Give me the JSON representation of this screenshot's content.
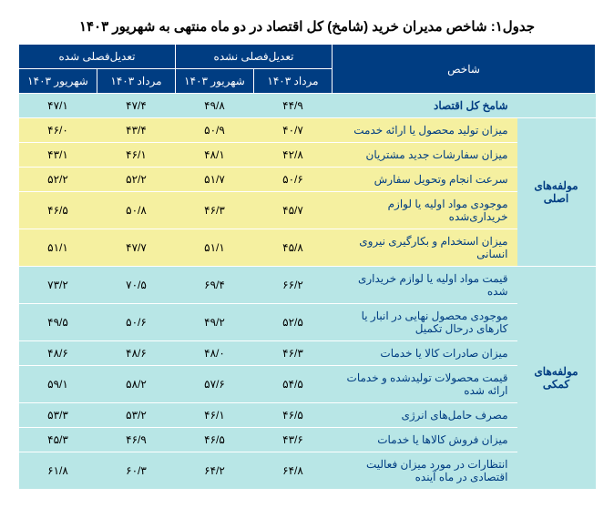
{
  "title": "جدول۱: شاخص مدیران خرید (شامخ) کل اقتصاد در دو ماه منتهی به شهریور ۱۴۰۳",
  "header": {
    "index_label": "شاخص",
    "group_nsa": "تعدیل‌فصلی نشده",
    "group_sa": "تعدیل‌فصلی شده",
    "col_nsa_m": "مرداد ۱۴۰۳",
    "col_nsa_sh": "شهریور ۱۴۰۳",
    "col_sa_m": "مرداد ۱۴۰۳",
    "col_sa_sh": "شهریور ۱۴۰۳"
  },
  "colors": {
    "header_bg": "#003d82",
    "header_fg": "#ffffff",
    "cyan": "#b8e6e6",
    "yellow": "#f5f0a0",
    "label_fg": "#003d82"
  },
  "groups": {
    "total": "",
    "main": "مولفه‌های اصلی",
    "aux": "مولفه‌های کمکی"
  },
  "rows": {
    "r0": {
      "label": "شامخ کل اقتصاد",
      "nsa_m": "۴۴/۹",
      "nsa_sh": "۴۹/۸",
      "sa_m": "۴۷/۴",
      "sa_sh": "۴۷/۱"
    },
    "r1": {
      "label": "میزان تولید محصول یا ارائه خدمت",
      "nsa_m": "۴۰/۷",
      "nsa_sh": "۵۰/۹",
      "sa_m": "۴۳/۴",
      "sa_sh": "۴۶/۰"
    },
    "r2": {
      "label": "میزان سفارشات جدید مشتریان",
      "nsa_m": "۴۲/۸",
      "nsa_sh": "۴۸/۱",
      "sa_m": "۴۶/۱",
      "sa_sh": "۴۳/۱"
    },
    "r3": {
      "label": "سرعت انجام وتحویل سفارش",
      "nsa_m": "۵۰/۶",
      "nsa_sh": "۵۱/۷",
      "sa_m": "۵۲/۲",
      "sa_sh": "۵۲/۲"
    },
    "r4": {
      "label": "موجودی مواد اولیه یا لوازم خریداری‌شده",
      "nsa_m": "۴۵/۷",
      "nsa_sh": "۴۶/۳",
      "sa_m": "۵۰/۸",
      "sa_sh": "۴۶/۵"
    },
    "r5": {
      "label": "میزان استخدام و بکارگیری نیروی انسانی",
      "nsa_m": "۴۵/۸",
      "nsa_sh": "۵۱/۱",
      "sa_m": "۴۷/۷",
      "sa_sh": "۵۱/۱"
    },
    "r6": {
      "label": "قیمت مواد اولیه یا لوازم خریداری شده",
      "nsa_m": "۶۶/۲",
      "nsa_sh": "۶۹/۴",
      "sa_m": "۷۰/۵",
      "sa_sh": "۷۳/۲"
    },
    "r7": {
      "label": "موجودی محصول نهایی در انبار یا کارهای درحال تکمیل",
      "nsa_m": "۵۲/۵",
      "nsa_sh": "۴۹/۲",
      "sa_m": "۵۰/۶",
      "sa_sh": "۴۹/۵"
    },
    "r8": {
      "label": "میزان صادرات کالا یا خدمات",
      "nsa_m": "۴۶/۳",
      "nsa_sh": "۴۸/۰",
      "sa_m": "۴۸/۶",
      "sa_sh": "۴۸/۶"
    },
    "r9": {
      "label": "قیمت محصولات تولیدشده و خدمات ارائه شده",
      "nsa_m": "۵۴/۵",
      "nsa_sh": "۵۷/۶",
      "sa_m": "۵۸/۲",
      "sa_sh": "۵۹/۱"
    },
    "r10": {
      "label": "مصرف حامل‌های انرژی",
      "nsa_m": "۴۶/۵",
      "nsa_sh": "۴۶/۱",
      "sa_m": "۵۳/۲",
      "sa_sh": "۵۳/۳"
    },
    "r11": {
      "label": "میزان فروش کالاها یا خدمات",
      "nsa_m": "۴۳/۶",
      "nsa_sh": "۴۶/۵",
      "sa_m": "۴۶/۹",
      "sa_sh": "۴۵/۳"
    },
    "r12": {
      "label": "انتظارات در مورد میزان فعالیت اقتصادی در ماه آینده",
      "nsa_m": "۶۴/۸",
      "nsa_sh": "۶۴/۲",
      "sa_m": "۶۰/۳",
      "sa_sh": "۶۱/۸"
    }
  }
}
